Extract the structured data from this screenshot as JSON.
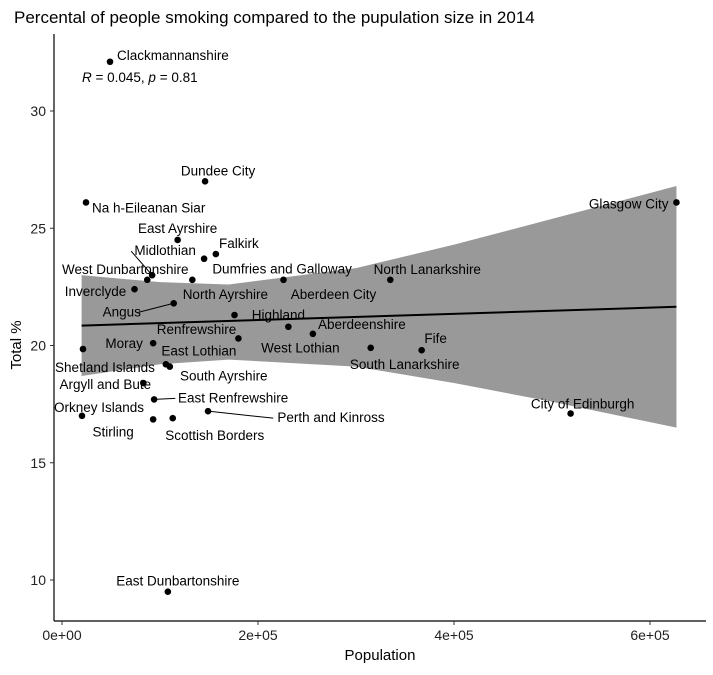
{
  "chart_data": {
    "type": "scatter",
    "title": "Percental of people smoking compared to the pupulation size in 2014",
    "xlabel": "Population",
    "ylabel": "Total %",
    "xlim": [
      -8000,
      660000
    ],
    "ylim": [
      7.7,
      33.3
    ],
    "x_ticks": [
      0,
      200000,
      400000,
      600000
    ],
    "x_tick_labels": [
      "0e+00",
      "2e+05",
      "4e+05",
      "6e+05"
    ],
    "y_ticks": [
      10,
      15,
      20,
      25,
      30
    ],
    "y_tick_labels": [
      "10",
      "15",
      "20",
      "25",
      "30"
    ],
    "grid": false,
    "annotation": {
      "r_symbol": "R",
      "r_text": " = 0.045, ",
      "p_symbol": "p",
      "p_text": " = 0.81"
    },
    "fit": {
      "type": "linear",
      "x": [
        20000,
        627000
      ],
      "y": [
        20.85,
        21.65
      ]
    },
    "confidence_band": {
      "x": [
        20000,
        100000,
        170000,
        300000,
        400000,
        500000,
        627000
      ],
      "lower": [
        18.7,
        19.2,
        19.4,
        19.1,
        18.4,
        17.6,
        16.5
      ],
      "upper": [
        23.0,
        22.7,
        22.6,
        23.3,
        24.3,
        25.4,
        26.8
      ],
      "color": "#999999"
    },
    "point_color": "#000000",
    "points": [
      {
        "label": "Clackmannanshire",
        "x": 49000,
        "y": 32.1
      },
      {
        "label": "Na h-Eileanan Siar",
        "x": 24500,
        "y": 26.1
      },
      {
        "label": "Dundee City",
        "x": 146000,
        "y": 27.0
      },
      {
        "label": "Glasgow City",
        "x": 627000,
        "y": 26.1
      },
      {
        "label": "East Ayrshire",
        "x": 118000,
        "y": 24.5
      },
      {
        "label": "Falkirk",
        "x": 157000,
        "y": 23.9
      },
      {
        "label": "Dumfries and Galloway",
        "x": 145000,
        "y": 23.7
      },
      {
        "label": "Midlothian",
        "x": 92000,
        "y": 23.0
      },
      {
        "label": "West Dunbartonshire",
        "x": 87000,
        "y": 22.8
      },
      {
        "label": "North Ayrshire",
        "x": 133000,
        "y": 22.8
      },
      {
        "label": "Aberdeen City",
        "x": 226000,
        "y": 22.8
      },
      {
        "label": "North Lanarkshire",
        "x": 335000,
        "y": 22.8
      },
      {
        "label": "Inverclyde",
        "x": 74000,
        "y": 22.4
      },
      {
        "label": "Angus",
        "x": 114000,
        "y": 21.8
      },
      {
        "label": "Renfrewshire",
        "x": 176000,
        "y": 21.3
      },
      {
        "label": "Highland",
        "x": 231000,
        "y": 20.8
      },
      {
        "label": "Aberdeenshire",
        "x": 256000,
        "y": 20.5
      },
      {
        "label": "West Lothian",
        "x": 180000,
        "y": 20.3
      },
      {
        "label": "Moray",
        "x": 93000,
        "y": 20.1
      },
      {
        "label": "Shetland Islands",
        "x": 21400,
        "y": 19.85
      },
      {
        "label": "South Lanarkshire",
        "x": 315000,
        "y": 19.9
      },
      {
        "label": "Fife",
        "x": 367000,
        "y": 19.8
      },
      {
        "label": "East Lothian",
        "x": 106000,
        "y": 19.2
      },
      {
        "label": "South Ayrshire",
        "x": 110000,
        "y": 19.1
      },
      {
        "label": "Argyll and Bute",
        "x": 83000,
        "y": 18.4
      },
      {
        "label": "East Renfrewshire",
        "x": 94000,
        "y": 17.7
      },
      {
        "label": "Orkney Islands",
        "x": 20400,
        "y": 17.0
      },
      {
        "label": "Stirling",
        "x": 93000,
        "y": 16.85
      },
      {
        "label": "Scottish Borders",
        "x": 113000,
        "y": 16.9
      },
      {
        "label": "Perth and Kinross",
        "x": 149000,
        "y": 17.2
      },
      {
        "label": "City of Edinburgh",
        "x": 519000,
        "y": 17.1
      },
      {
        "label": "East Dunbartonshire",
        "x": 108000,
        "y": 9.5
      }
    ]
  }
}
